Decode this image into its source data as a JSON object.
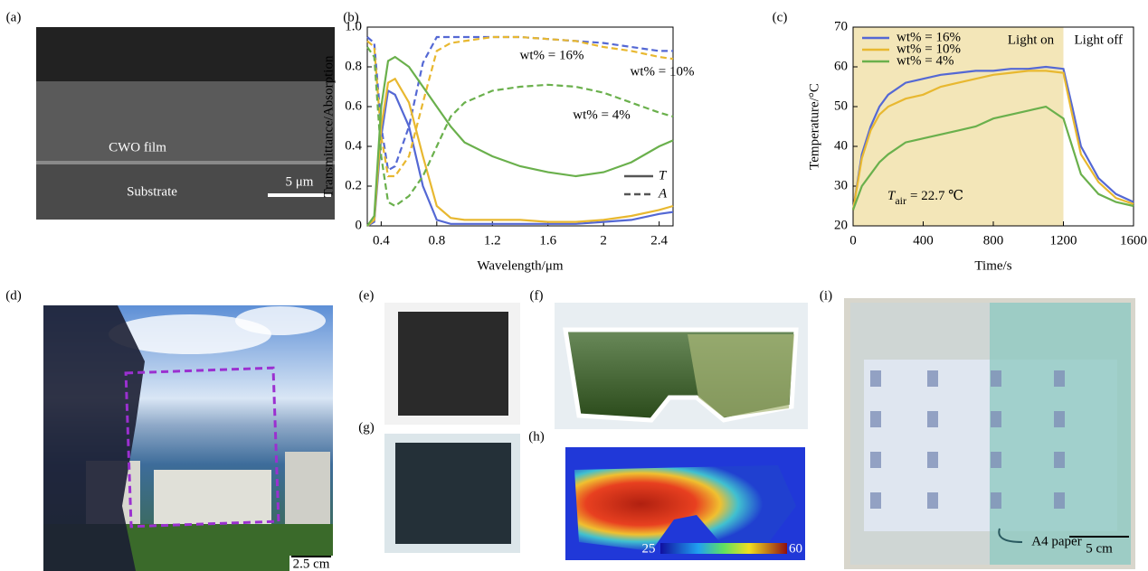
{
  "panel_labels": [
    "(a)",
    "(b)",
    "(c)",
    "(d)",
    "(e)",
    "(f)",
    "(g)",
    "(h)",
    "(i)"
  ],
  "sem": {
    "film": "CWO film",
    "substrate": "Substrate",
    "scale": "5 μm"
  },
  "photo_d": {
    "scale": "2.5 cm"
  },
  "thermal_h": {
    "min": "25",
    "max": "60 ℃"
  },
  "photo_i": {
    "label": "A4 paper",
    "scale": "5 cm"
  },
  "chart_data": [
    {
      "type": "line",
      "xlabel": "Wavelength/μm",
      "ylabel": "Transmittance/Absorption",
      "x": [
        0.3,
        0.35,
        0.4,
        0.45,
        0.5,
        0.6,
        0.7,
        0.8,
        0.9,
        1.0,
        1.2,
        1.4,
        1.6,
        1.8,
        2.0,
        2.2,
        2.4,
        2.5
      ],
      "xlim": [
        0.3,
        2.5
      ],
      "xticks": [
        0.4,
        0.8,
        1.2,
        1.6,
        2.0,
        2.4
      ],
      "ylim": [
        0,
        1
      ],
      "yticks": [
        0,
        0.2,
        0.4,
        0.6,
        0.8,
        {
          "value": 1,
          "label": "1.0"
        }
      ],
      "legend": [
        {
          "label": "T",
          "dash": "solid"
        },
        {
          "label": "A",
          "dash": "dashed"
        }
      ],
      "series": [
        {
          "name": "wt% = 16%",
          "color": "#5468d4",
          "T": [
            0,
            0.02,
            0.45,
            0.68,
            0.66,
            0.5,
            0.2,
            0.03,
            0.01,
            0.01,
            0.01,
            0.01,
            0.01,
            0.01,
            0.02,
            0.03,
            0.06,
            0.07
          ],
          "A": [
            0.95,
            0.92,
            0.5,
            0.28,
            0.3,
            0.5,
            0.82,
            0.95,
            0.95,
            0.95,
            0.95,
            0.95,
            0.94,
            0.93,
            0.92,
            0.9,
            0.88,
            0.88
          ]
        },
        {
          "name": "wt% = 10%",
          "color": "#e8b830",
          "T": [
            0,
            0.03,
            0.5,
            0.72,
            0.74,
            0.62,
            0.35,
            0.1,
            0.04,
            0.03,
            0.03,
            0.03,
            0.02,
            0.02,
            0.03,
            0.05,
            0.08,
            0.1
          ],
          "A": [
            0.93,
            0.9,
            0.45,
            0.25,
            0.25,
            0.35,
            0.62,
            0.88,
            0.92,
            0.93,
            0.95,
            0.95,
            0.94,
            0.93,
            0.9,
            0.88,
            0.85,
            0.84
          ]
        },
        {
          "name": "wt% = 4%",
          "color": "#6ab04c",
          "T": [
            0,
            0.05,
            0.6,
            0.83,
            0.85,
            0.8,
            0.7,
            0.6,
            0.5,
            0.42,
            0.35,
            0.3,
            0.27,
            0.25,
            0.27,
            0.32,
            0.4,
            0.43
          ],
          "A": [
            0.9,
            0.85,
            0.35,
            0.12,
            0.1,
            0.15,
            0.25,
            0.4,
            0.55,
            0.62,
            0.68,
            0.7,
            0.71,
            0.7,
            0.67,
            0.62,
            0.57,
            0.55
          ]
        }
      ]
    },
    {
      "type": "line",
      "xlabel": "Time/s",
      "ylabel": "Temperature/°C",
      "x": [
        0,
        50,
        100,
        150,
        200,
        300,
        400,
        500,
        600,
        700,
        800,
        900,
        1000,
        1100,
        1200,
        1250,
        1300,
        1400,
        1500,
        1600
      ],
      "xlim": [
        0,
        1600
      ],
      "xticks": [
        0,
        400,
        800,
        1200,
        1600
      ],
      "ylim": [
        20,
        70
      ],
      "yticks": [
        20,
        30,
        40,
        50,
        60,
        70
      ],
      "light_on_until": 1200,
      "light_on": "Light on",
      "light_off": "Light off",
      "shade_color": "#f3e6b8",
      "annotation": {
        "symbol": "T",
        "subscript": "air",
        "text": "= 22.7 ℃"
      },
      "series": [
        {
          "name": "wt% = 16%",
          "color": "#5468d4",
          "values": [
            24,
            38,
            45,
            50,
            53,
            56,
            57,
            58,
            58.5,
            59,
            59,
            59.5,
            59.5,
            60,
            59.5,
            50,
            40,
            32,
            28,
            26
          ]
        },
        {
          "name": "wt% = 10%",
          "color": "#e8b830",
          "values": [
            24,
            37,
            44,
            48,
            50,
            52,
            53,
            55,
            56,
            57,
            58,
            58.5,
            59,
            59,
            58.5,
            48,
            38,
            31,
            27,
            25.5
          ]
        },
        {
          "name": "wt% = 4%",
          "color": "#6ab04c",
          "values": [
            24,
            30,
            33,
            36,
            38,
            41,
            42,
            43,
            44,
            45,
            47,
            48,
            49,
            50,
            47,
            40,
            33,
            28,
            26,
            25
          ]
        }
      ]
    }
  ]
}
